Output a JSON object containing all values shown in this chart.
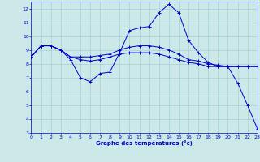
{
  "xlabel": "Graphe des températures (°c)",
  "bg_color": "#cce8e8",
  "line_color": "#0000cc",
  "grid_color": "#99cccc",
  "xlim": [
    0,
    23
  ],
  "ylim": [
    3,
    12.5
  ],
  "xticks": [
    0,
    1,
    2,
    3,
    4,
    5,
    6,
    7,
    8,
    9,
    10,
    11,
    12,
    13,
    14,
    15,
    16,
    17,
    18,
    19,
    20,
    21,
    22,
    23
  ],
  "yticks": [
    3,
    4,
    5,
    6,
    7,
    8,
    9,
    10,
    11,
    12
  ],
  "series1_x": [
    0,
    1,
    2,
    3,
    4,
    5,
    6,
    7,
    8,
    9,
    10,
    11,
    12,
    13,
    14,
    15,
    16,
    17,
    18,
    19,
    20,
    21,
    22,
    23
  ],
  "series1_y": [
    8.5,
    9.3,
    9.3,
    9.0,
    8.3,
    7.0,
    6.7,
    7.3,
    7.4,
    8.8,
    10.4,
    10.6,
    10.7,
    11.7,
    12.3,
    11.7,
    9.7,
    8.8,
    8.1,
    7.8,
    7.8,
    6.6,
    5.0,
    3.3
  ],
  "series2_x": [
    0,
    1,
    2,
    3,
    4,
    5,
    6,
    7,
    8,
    9,
    10,
    11,
    12,
    13,
    14,
    15,
    16,
    17,
    18,
    19,
    20,
    21,
    22,
    23
  ],
  "series2_y": [
    8.5,
    9.3,
    9.3,
    9.0,
    8.5,
    8.3,
    8.2,
    8.3,
    8.5,
    8.7,
    8.8,
    8.8,
    8.8,
    8.7,
    8.5,
    8.3,
    8.1,
    8.0,
    7.8,
    7.8,
    7.8,
    7.8,
    7.8,
    7.8
  ],
  "series3_x": [
    0,
    1,
    2,
    3,
    4,
    5,
    6,
    7,
    8,
    9,
    10,
    11,
    12,
    13,
    14,
    15,
    16,
    17,
    18,
    19,
    20,
    21,
    22,
    23
  ],
  "series3_y": [
    8.5,
    9.3,
    9.3,
    9.0,
    8.5,
    8.5,
    8.5,
    8.6,
    8.7,
    9.0,
    9.2,
    9.3,
    9.3,
    9.2,
    9.0,
    8.7,
    8.3,
    8.2,
    8.0,
    7.9,
    7.8,
    7.8,
    7.8,
    7.8
  ]
}
